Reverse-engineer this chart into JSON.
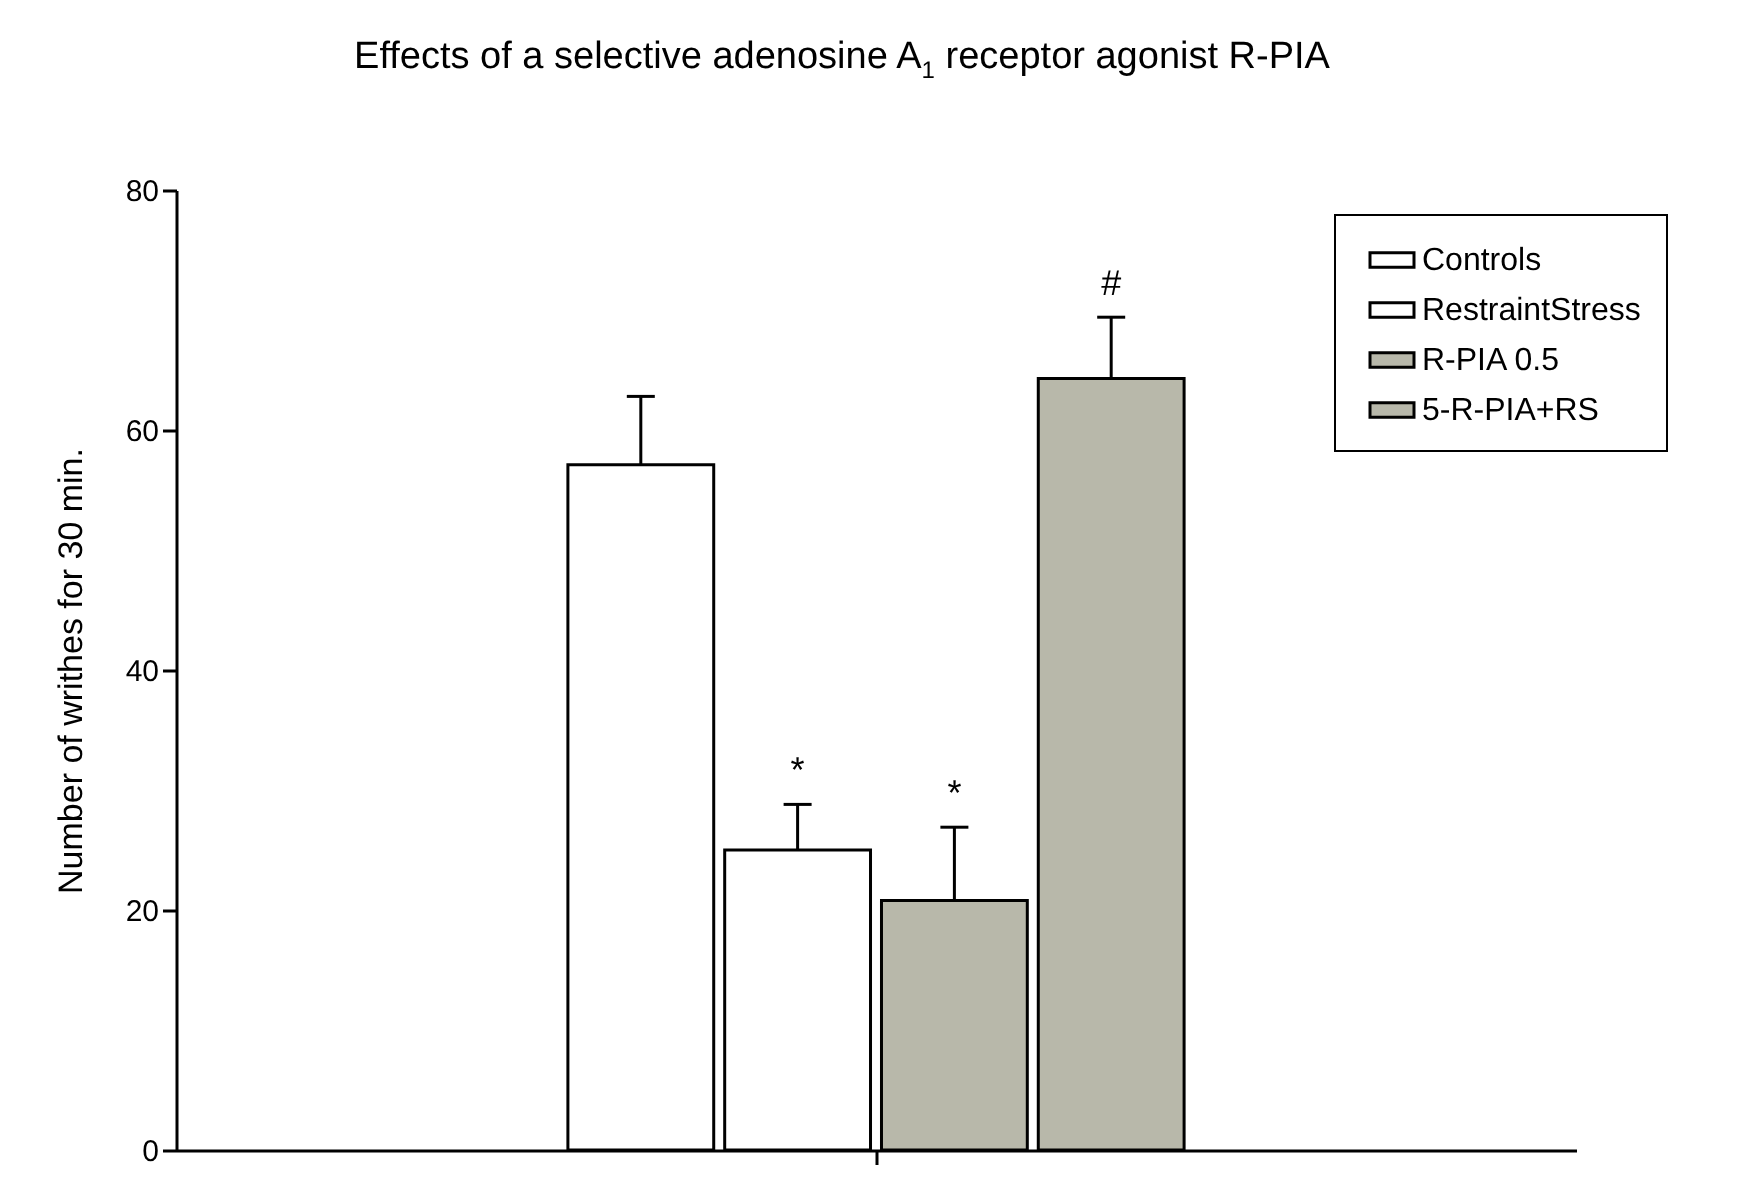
{
  "chart_data": {
    "type": "bar",
    "title": "Effects of a selective adenosine A$_{1}$ receptor agonist R-PIA",
    "ylabel": "Number of writhes for 30 min.",
    "categories": [
      null
    ],
    "series": [
      {
        "name": "Controls",
        "color": "#ffffff",
        "values": [
          57.1
        ],
        "errors": [
          5.7
        ]
      },
      {
        "name": "RestraintStress",
        "color": "#ffffff",
        "values": [
          25.0
        ],
        "errors": [
          3.8
        ],
        "value_labels": [
          "*"
        ]
      },
      {
        "name": "R-PIA 0.5",
        "color": "#b8b8aa",
        "values": [
          20.8
        ],
        "errors": [
          6.1
        ],
        "value_labels": [
          "*"
        ]
      },
      {
        "name": "5-R-PIA+RS",
        "color": "#b8b8aa",
        "values": [
          64.3
        ],
        "errors": [
          5.1
        ],
        "value_labels": [
          "#"
        ]
      }
    ],
    "ylim": [
      0,
      80
    ],
    "yticks": [
      0,
      20,
      40,
      60,
      80
    ],
    "grid": false,
    "legend": "top right",
    "tick_labels": "y"
  }
}
